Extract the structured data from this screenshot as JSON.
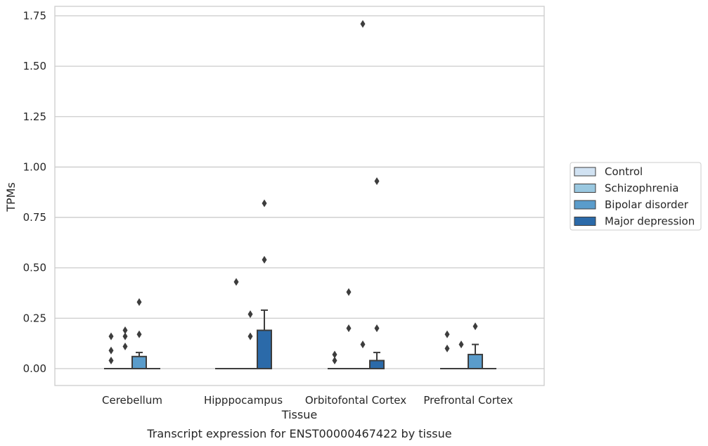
{
  "chart_data": {
    "type": "box",
    "xlabel": "Tissue",
    "ylabel": "TPMs",
    "caption": "Transcript expression for ENST00000467422 by tissue",
    "ylim": [
      -0.08,
      1.8
    ],
    "yticks": [
      "0.00",
      "0.25",
      "0.50",
      "0.75",
      "1.00",
      "1.25",
      "1.50",
      "1.75"
    ],
    "categories": [
      "Cerebellum",
      "Hipppocampus",
      "Orbitofontal Cortex",
      "Prefrontal Cortex"
    ],
    "grid": "horizontal",
    "legend_position": "right",
    "series": [
      {
        "name": "Control",
        "color": "#d1e2f2",
        "boxes": [
          {
            "q1": 0,
            "median": 0,
            "q3": 0,
            "whisker_low": 0,
            "whisker_high": 0,
            "outliers": [
              0.04,
              0.09,
              0.16
            ]
          },
          {
            "q1": 0,
            "median": 0,
            "q3": 0,
            "whisker_low": 0,
            "whisker_high": 0,
            "outliers": []
          },
          {
            "q1": 0,
            "median": 0,
            "q3": 0,
            "whisker_low": 0,
            "whisker_high": 0,
            "outliers": [
              0.04,
              0.07
            ]
          },
          {
            "q1": 0,
            "median": 0,
            "q3": 0,
            "whisker_low": 0,
            "whisker_high": 0,
            "outliers": [
              0.1,
              0.17
            ]
          }
        ]
      },
      {
        "name": "Schizophrenia",
        "color": "#9ac8e0",
        "boxes": [
          {
            "q1": 0,
            "median": 0,
            "q3": 0,
            "whisker_low": 0,
            "whisker_high": 0,
            "outliers": [
              0.11,
              0.16,
              0.19
            ]
          },
          {
            "q1": 0,
            "median": 0,
            "q3": 0,
            "whisker_low": 0,
            "whisker_high": 0,
            "outliers": [
              0.43
            ]
          },
          {
            "q1": 0,
            "median": 0,
            "q3": 0,
            "whisker_low": 0,
            "whisker_high": 0,
            "outliers": [
              0.2,
              0.38
            ]
          },
          {
            "q1": 0,
            "median": 0,
            "q3": 0,
            "whisker_low": 0,
            "whisker_high": 0,
            "outliers": [
              0.12
            ]
          }
        ]
      },
      {
        "name": "Bipolar disorder",
        "color": "#5a9ccb",
        "boxes": [
          {
            "q1": 0,
            "median": 0,
            "q3": 0.06,
            "whisker_low": 0,
            "whisker_high": 0.08,
            "outliers": [
              0.17,
              0.33
            ]
          },
          {
            "q1": 0,
            "median": 0,
            "q3": 0,
            "whisker_low": 0,
            "whisker_high": 0,
            "outliers": [
              0.16,
              0.27
            ]
          },
          {
            "q1": 0,
            "median": 0,
            "q3": 0,
            "whisker_low": 0,
            "whisker_high": 0,
            "outliers": [
              0.12,
              1.71
            ]
          },
          {
            "q1": 0,
            "median": 0,
            "q3": 0.07,
            "whisker_low": 0,
            "whisker_high": 0.12,
            "outliers": [
              0.21
            ]
          }
        ]
      },
      {
        "name": "Major depression",
        "color": "#2b6aa9",
        "boxes": [
          {
            "q1": 0,
            "median": 0,
            "q3": 0,
            "whisker_low": 0,
            "whisker_high": 0,
            "outliers": []
          },
          {
            "q1": 0,
            "median": 0,
            "q3": 0.19,
            "whisker_low": 0,
            "whisker_high": 0.29,
            "outliers": [
              0.54,
              0.82
            ]
          },
          {
            "q1": 0,
            "median": 0,
            "q3": 0.04,
            "whisker_low": 0,
            "whisker_high": 0.08,
            "outliers": [
              0.2,
              0.93
            ]
          },
          {
            "q1": 0,
            "median": 0,
            "q3": 0,
            "whisker_low": 0,
            "whisker_high": 0,
            "outliers": []
          }
        ]
      }
    ]
  }
}
